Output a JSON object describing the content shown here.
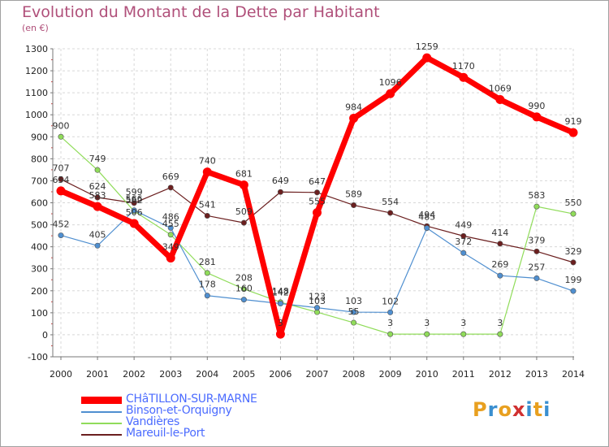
{
  "title": "Evolution du Montant de la Dette par Habitant",
  "subtitle": "(en €)",
  "logo": {
    "text": "Proxiti",
    "colors": [
      "#e8a020",
      "#3a8fd0",
      "#e8a020",
      "#d03030",
      "#3a8fd0",
      "#e8a020",
      "#3a8fd0"
    ]
  },
  "chart_data": {
    "type": "line",
    "x": [
      2000,
      2001,
      2002,
      2003,
      2004,
      2005,
      2006,
      2007,
      2008,
      2009,
      2010,
      2011,
      2012,
      2013,
      2014
    ],
    "ylim": [
      -100,
      1300
    ],
    "yticks": [
      -100,
      0,
      100,
      200,
      300,
      400,
      500,
      600,
      700,
      800,
      900,
      1000,
      1100,
      1200,
      1300
    ],
    "grid": true,
    "legend_position": "bottom-left",
    "series": [
      {
        "name": "Mareuil-le-Port",
        "color": "#6b1f1f",
        "values": [
          707,
          624,
          599,
          669,
          541,
          509,
          649,
          647,
          589,
          554,
          494,
          449,
          414,
          379,
          329
        ],
        "labels": [
          "707",
          "624",
          "599",
          "669",
          "541",
          "509",
          "649",
          "647",
          "589",
          "554",
          "494",
          "449",
          "414",
          "379",
          "329"
        ]
      },
      {
        "name": "Vandières",
        "color": "#90dc5a",
        "values": [
          900,
          749,
          562,
          455,
          281,
          208,
          148,
          103,
          55,
          3,
          3,
          3,
          3,
          583,
          550
        ],
        "labels": [
          "900",
          "749",
          "562",
          "455",
          "281",
          "208",
          "148",
          "103",
          "55",
          "3",
          "3",
          "3",
          "3",
          "583",
          "550"
        ]
      },
      {
        "name": "Binson-et-Orquigny",
        "color": "#4f8fd0",
        "values": [
          452,
          405,
          566,
          486,
          178,
          160,
          142,
          123,
          103,
          102,
          485,
          372,
          269,
          257,
          199
        ],
        "labels": [
          "452",
          "405",
          "566",
          "486",
          "178",
          "160",
          "142",
          "123",
          "103",
          "102",
          "485",
          "372",
          "269",
          "257",
          "199"
        ]
      },
      {
        "name": "CHâTILLON-SUR-MARNE",
        "color": "#ff0000",
        "values": [
          654,
          583,
          506,
          349,
          740,
          681,
          3,
          555,
          984,
          1096,
          1259,
          1170,
          1069,
          990,
          919
        ],
        "labels": [
          "654",
          "583",
          "506",
          "349",
          "740",
          "681",
          "3",
          "555",
          "984",
          "1096",
          "1259",
          "1170",
          "1069",
          "990",
          "919"
        ]
      }
    ]
  },
  "legend_order": [
    "CHâTILLON-SUR-MARNE",
    "Binson-et-Orquigny",
    "Vandières",
    "Mareuil-le-Port"
  ]
}
